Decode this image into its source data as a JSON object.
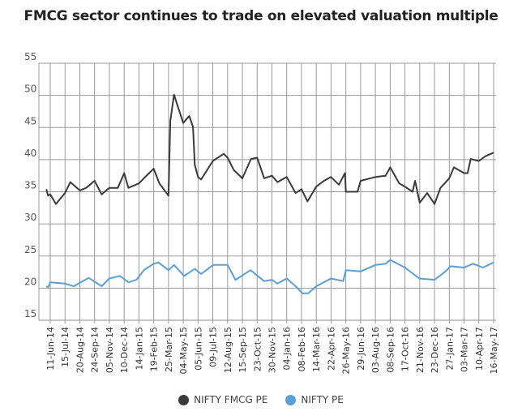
{
  "chart_data": {
    "type": "line",
    "title": "FMCG sector continues to trade on elevated valuation multiple",
    "xlabel": "",
    "ylabel": "",
    "ylim": [
      15,
      55
    ],
    "yticks": [
      15,
      20,
      25,
      30,
      35,
      40,
      45,
      50,
      55
    ],
    "grid": true,
    "legend_position": "bottom",
    "x_tick_labels": [
      "11-Jun-14",
      "15-Jul-14",
      "20-Aug-14",
      "24-Sep-14",
      "05-Nov-14",
      "10-Dec-14",
      "14-Jan-15",
      "19-Feb-15",
      "25-Mar-15",
      "04-May-15",
      "05-Jun-15",
      "09-Jul-15",
      "12-Aug-15",
      "15-Sep-15",
      "23-Oct-15",
      "30-Nov-15",
      "04-Jan-16",
      "08-Feb-16",
      "14-Mar-16",
      "22-Apr-16",
      "26-May-16",
      "29-Jun-16",
      "03-Aug-16",
      "08-Sep-16",
      "17-Oct-16",
      "21-Nov-16",
      "23-Dec-16",
      "27-Jan-17",
      "03-Mar-17",
      "10-Apr-17",
      "16-May-17"
    ],
    "x_tick_dates": [
      "2014-06-11",
      "2014-07-15",
      "2014-08-20",
      "2014-09-24",
      "2014-11-05",
      "2014-12-10",
      "2015-01-14",
      "2015-02-19",
      "2015-03-25",
      "2015-05-04",
      "2015-06-05",
      "2015-07-09",
      "2015-08-12",
      "2015-09-15",
      "2015-10-23",
      "2015-11-30",
      "2016-01-04",
      "2016-02-08",
      "2016-03-14",
      "2016-04-22",
      "2016-05-26",
      "2016-06-29",
      "2016-08-03",
      "2016-09-08",
      "2016-10-17",
      "2016-11-21",
      "2016-12-23",
      "2017-01-27",
      "2017-03-03",
      "2017-04-10",
      "2017-05-16"
    ],
    "series": [
      {
        "name": "NIFTY FMCG PE",
        "color": "#3a3a3a",
        "points": [
          [
            "2014-06-02",
            35.4
          ],
          [
            "2014-06-06",
            34.4
          ],
          [
            "2014-06-11",
            34.6
          ],
          [
            "2014-06-24",
            33.1
          ],
          [
            "2014-07-15",
            34.8
          ],
          [
            "2014-07-28",
            36.5
          ],
          [
            "2014-08-20",
            35.2
          ],
          [
            "2014-09-04",
            35.6
          ],
          [
            "2014-09-24",
            36.7
          ],
          [
            "2014-10-14",
            34.6
          ],
          [
            "2014-11-05",
            35.6
          ],
          [
            "2014-11-25",
            35.6
          ],
          [
            "2014-12-10",
            37.9
          ],
          [
            "2014-12-20",
            35.6
          ],
          [
            "2015-01-14",
            36.3
          ],
          [
            "2015-01-26",
            37.1
          ],
          [
            "2015-02-19",
            38.6
          ],
          [
            "2015-03-04",
            36.3
          ],
          [
            "2015-03-25",
            34.4
          ],
          [
            "2015-03-30",
            46.0
          ],
          [
            "2015-04-09",
            50.1
          ],
          [
            "2015-04-22",
            47.8
          ],
          [
            "2015-05-04",
            45.7
          ],
          [
            "2015-05-17",
            46.8
          ],
          [
            "2015-05-25",
            45.1
          ],
          [
            "2015-05-29",
            39.2
          ],
          [
            "2015-06-05",
            37.3
          ],
          [
            "2015-06-12",
            36.9
          ],
          [
            "2015-07-09",
            39.8
          ],
          [
            "2015-08-03",
            40.9
          ],
          [
            "2015-08-12",
            40.3
          ],
          [
            "2015-08-26",
            38.4
          ],
          [
            "2015-09-15",
            37.1
          ],
          [
            "2015-10-07",
            40.1
          ],
          [
            "2015-10-23",
            40.3
          ],
          [
            "2015-11-10",
            37.1
          ],
          [
            "2015-11-30",
            37.5
          ],
          [
            "2015-12-13",
            36.5
          ],
          [
            "2016-01-04",
            37.3
          ],
          [
            "2016-01-25",
            34.8
          ],
          [
            "2016-02-08",
            35.4
          ],
          [
            "2016-02-22",
            33.5
          ],
          [
            "2016-03-14",
            35.8
          ],
          [
            "2016-04-03",
            36.7
          ],
          [
            "2016-04-22",
            37.3
          ],
          [
            "2016-05-10",
            36.1
          ],
          [
            "2016-05-24",
            37.9
          ],
          [
            "2016-05-26",
            35.0
          ],
          [
            "2016-06-22",
            35.0
          ],
          [
            "2016-06-29",
            36.7
          ],
          [
            "2016-08-03",
            37.3
          ],
          [
            "2016-08-28",
            37.5
          ],
          [
            "2016-09-08",
            38.8
          ],
          [
            "2016-10-02",
            36.3
          ],
          [
            "2016-10-17",
            35.8
          ],
          [
            "2016-11-04",
            35.0
          ],
          [
            "2016-11-10",
            36.7
          ],
          [
            "2016-11-21",
            33.3
          ],
          [
            "2016-12-07",
            34.8
          ],
          [
            "2016-12-23",
            33.1
          ],
          [
            "2017-01-06",
            35.6
          ],
          [
            "2017-01-27",
            37.1
          ],
          [
            "2017-02-07",
            38.8
          ],
          [
            "2017-03-03",
            37.9
          ],
          [
            "2017-03-12",
            37.9
          ],
          [
            "2017-03-20",
            40.1
          ],
          [
            "2017-04-10",
            39.8
          ],
          [
            "2017-04-25",
            40.5
          ],
          [
            "2017-05-16",
            41.1
          ]
        ]
      },
      {
        "name": "NIFTY PE",
        "color": "#5b9fd6",
        "points": [
          [
            "2014-06-02",
            20.3
          ],
          [
            "2014-06-06",
            20.1
          ],
          [
            "2014-06-11",
            20.9
          ],
          [
            "2014-07-15",
            20.7
          ],
          [
            "2014-08-05",
            20.3
          ],
          [
            "2014-09-10",
            21.6
          ],
          [
            "2014-10-14",
            20.3
          ],
          [
            "2014-11-05",
            21.5
          ],
          [
            "2014-11-30",
            21.9
          ],
          [
            "2014-12-20",
            20.9
          ],
          [
            "2015-01-08",
            21.3
          ],
          [
            "2015-01-26",
            22.8
          ],
          [
            "2015-02-19",
            23.8
          ],
          [
            "2015-03-02",
            24.0
          ],
          [
            "2015-03-25",
            22.8
          ],
          [
            "2015-04-09",
            23.6
          ],
          [
            "2015-05-06",
            21.9
          ],
          [
            "2015-05-29",
            23.0
          ],
          [
            "2015-06-12",
            22.2
          ],
          [
            "2015-07-10",
            23.6
          ],
          [
            "2015-08-12",
            23.6
          ],
          [
            "2015-08-30",
            21.3
          ],
          [
            "2015-10-06",
            22.8
          ],
          [
            "2015-11-10",
            21.1
          ],
          [
            "2015-11-30",
            21.3
          ],
          [
            "2015-12-13",
            20.7
          ],
          [
            "2016-01-04",
            21.5
          ],
          [
            "2016-01-25",
            20.3
          ],
          [
            "2016-02-10",
            19.2
          ],
          [
            "2016-02-24",
            19.2
          ],
          [
            "2016-03-14",
            20.3
          ],
          [
            "2016-04-22",
            21.5
          ],
          [
            "2016-05-20",
            21.1
          ],
          [
            "2016-05-26",
            22.8
          ],
          [
            "2016-06-29",
            22.6
          ],
          [
            "2016-08-03",
            23.6
          ],
          [
            "2016-08-28",
            23.8
          ],
          [
            "2016-09-08",
            24.4
          ],
          [
            "2016-10-17",
            23.2
          ],
          [
            "2016-11-20",
            21.5
          ],
          [
            "2016-12-23",
            21.3
          ],
          [
            "2017-01-18",
            22.6
          ],
          [
            "2017-01-30",
            23.4
          ],
          [
            "2017-03-03",
            23.2
          ],
          [
            "2017-03-26",
            23.8
          ],
          [
            "2017-04-20",
            23.2
          ],
          [
            "2017-05-16",
            24.0
          ]
        ]
      }
    ]
  },
  "legend": {
    "items": [
      {
        "label": "NIFTY FMCG PE",
        "color": "#3a3a3a"
      },
      {
        "label": "NIFTY PE",
        "color": "#5b9fd6"
      }
    ]
  }
}
